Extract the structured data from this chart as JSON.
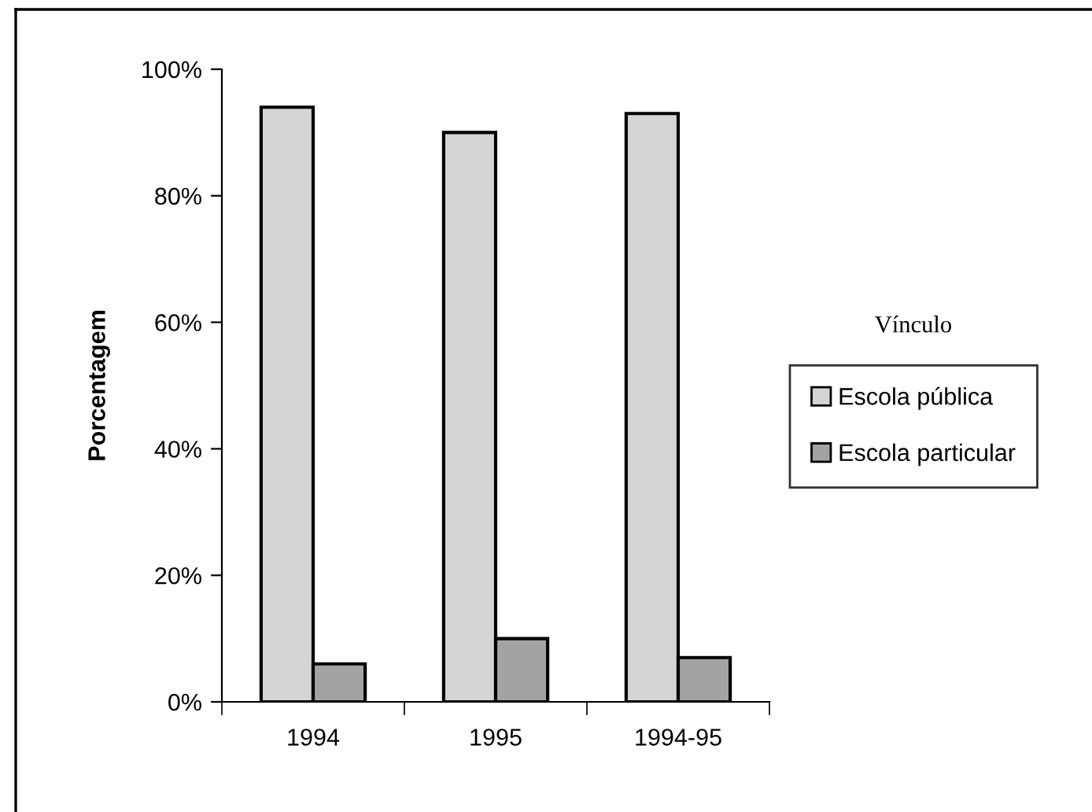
{
  "chart_data": {
    "type": "bar",
    "ylabel": "Porcentagem",
    "legend_title": "Vínculo",
    "categories": [
      "1994",
      "1995",
      "1994-95"
    ],
    "series": [
      {
        "name": "Escola pública",
        "color": "#d4d4d4",
        "values": [
          94,
          90,
          93
        ]
      },
      {
        "name": "Escola particular",
        "color": "#a3a3a3",
        "values": [
          6,
          10,
          7
        ]
      }
    ],
    "ylim": [
      0,
      100
    ],
    "yticks": [
      {
        "value": 0,
        "label": "0%"
      },
      {
        "value": 20,
        "label": "20%"
      },
      {
        "value": 40,
        "label": "40%"
      },
      {
        "value": 60,
        "label": "60%"
      },
      {
        "value": 80,
        "label": "80%"
      },
      {
        "value": 100,
        "label": "100%"
      }
    ],
    "grid": false,
    "legend": "right"
  }
}
